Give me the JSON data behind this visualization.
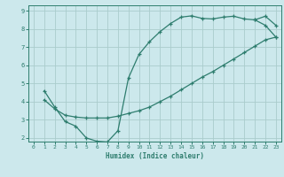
{
  "xlabel": "Humidex (Indice chaleur)",
  "bg_color": "#cce8ec",
  "line_color": "#2e7d6e",
  "grid_color": "#aacccc",
  "xlim": [
    -0.5,
    23.5
  ],
  "ylim": [
    1.8,
    9.3
  ],
  "xticks": [
    0,
    1,
    2,
    3,
    4,
    5,
    6,
    7,
    8,
    9,
    10,
    11,
    12,
    13,
    14,
    15,
    16,
    17,
    18,
    19,
    20,
    21,
    22,
    23
  ],
  "yticks": [
    2,
    3,
    4,
    5,
    6,
    7,
    8,
    9
  ],
  "line1_x": [
    1,
    2,
    3,
    4,
    5,
    6,
    7,
    8,
    9,
    10,
    11,
    12,
    13,
    14,
    15,
    16,
    17,
    18,
    19,
    20,
    21,
    22,
    23
  ],
  "line1_y": [
    4.6,
    3.7,
    2.9,
    2.65,
    2.0,
    1.82,
    1.78,
    2.4,
    5.3,
    6.6,
    7.3,
    7.85,
    8.3,
    8.65,
    8.72,
    8.58,
    8.55,
    8.65,
    8.7,
    8.55,
    8.5,
    8.7,
    8.2
  ],
  "line2_x": [
    1,
    2,
    3,
    4,
    5,
    6,
    7,
    8,
    9,
    10,
    11,
    12,
    13,
    14,
    15,
    16,
    17,
    18,
    19,
    20,
    21,
    22,
    23
  ],
  "line2_y": [
    4.1,
    3.6,
    3.25,
    3.15,
    3.1,
    3.1,
    3.1,
    3.2,
    3.35,
    3.5,
    3.7,
    4.0,
    4.3,
    4.65,
    5.0,
    5.35,
    5.65,
    6.0,
    6.35,
    6.7,
    7.05,
    7.4,
    7.55
  ],
  "line3_x": [
    21,
    22,
    23
  ],
  "line3_y": [
    8.5,
    8.2,
    7.55
  ]
}
